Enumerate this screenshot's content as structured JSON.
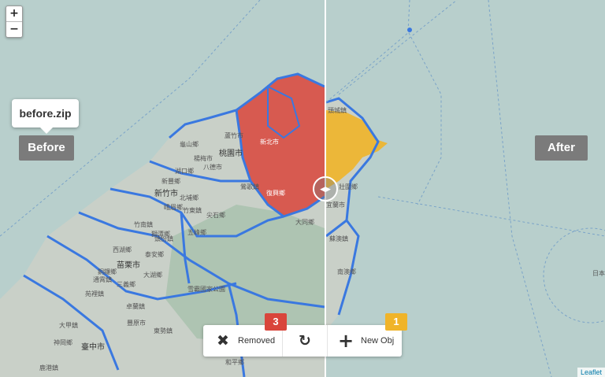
{
  "zoom": {
    "in_label": "+",
    "out_label": "−"
  },
  "tooltip": {
    "text": "before.zip"
  },
  "labels": {
    "before": "Before",
    "after": "After"
  },
  "toolbar": {
    "removed_label": "Removed",
    "removed_count": "3",
    "new_label": "New Obj",
    "new_count": "1"
  },
  "map_places": [
    "蘆竹市",
    "龜山鄉",
    "桃園市",
    "新北市",
    "八德市",
    "鶯歌鎮",
    "復興鄉",
    "新竹市",
    "竹東鎮",
    "尖石鄉",
    "五峰鄉",
    "大同鄉",
    "宜蘭市",
    "壯圍鄉",
    "頭城鎮",
    "蘇澳鎮",
    "南澳鄉",
    "泰安鄉",
    "苗栗市",
    "竹南鎮",
    "頭份鎮",
    "苑裡鎮",
    "通霄鎮",
    "西湖鄉",
    "銅鑼鄉",
    "三義鄉",
    "雪霸國家公園",
    "臺中市",
    "豐原市",
    "神岡鄉",
    "大甲鎮",
    "和平鄉",
    "湖口鄉",
    "新豐鄉",
    "楊梅市",
    "北埔鄉",
    "峨眉鄉",
    "獅潭鄉",
    "大湖鄉",
    "卓蘭鎮",
    "東勢鎮",
    "鹿港鎮",
    "日本"
  ],
  "attribution": "Leaflet",
  "colors": {
    "removed": "#d9453b",
    "added": "#f0b429",
    "water": "#b8cfcc",
    "land": "#cfd6cf",
    "boundary": "#3a78e0"
  }
}
